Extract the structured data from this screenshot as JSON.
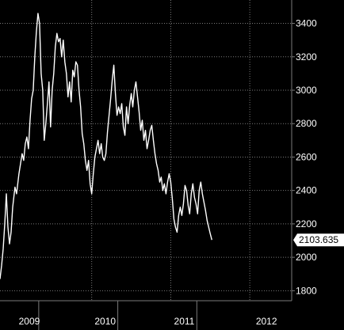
{
  "chart_data": {
    "type": "line",
    "title": "",
    "xlabel": "",
    "ylabel": "",
    "x_ticks": [
      "2009",
      "2010",
      "2011",
      "2012"
    ],
    "y_ticks": [
      1800,
      2000,
      2200,
      2400,
      2600,
      2800,
      3000,
      3200,
      3400
    ],
    "ylim": [
      1740,
      3540
    ],
    "xlim": [
      2008.84,
      2012.53
    ],
    "grid": true,
    "last_value_label": "2103.635",
    "colors": {
      "background": "#000000",
      "line": "#ffffff",
      "grid": "#7a7a7a",
      "text": "#ffffff"
    },
    "series": [
      {
        "points": [
          [
            2008.84,
            1870
          ],
          [
            2008.86,
            1950
          ],
          [
            2008.88,
            2050
          ],
          [
            2008.9,
            2200
          ],
          [
            2008.92,
            2380
          ],
          [
            2008.94,
            2180
          ],
          [
            2008.96,
            2080
          ],
          [
            2008.98,
            2150
          ],
          [
            2009.0,
            2300
          ],
          [
            2009.03,
            2420
          ],
          [
            2009.05,
            2380
          ],
          [
            2009.08,
            2500
          ],
          [
            2009.1,
            2560
          ],
          [
            2009.12,
            2620
          ],
          [
            2009.14,
            2580
          ],
          [
            2009.16,
            2680
          ],
          [
            2009.18,
            2720
          ],
          [
            2009.2,
            2650
          ],
          [
            2009.22,
            2820
          ],
          [
            2009.24,
            2950
          ],
          [
            2009.26,
            3000
          ],
          [
            2009.28,
            3200
          ],
          [
            2009.3,
            3350
          ],
          [
            2009.32,
            3460
          ],
          [
            2009.34,
            3400
          ],
          [
            2009.36,
            3100
          ],
          [
            2009.38,
            3000
          ],
          [
            2009.4,
            2700
          ],
          [
            2009.42,
            2800
          ],
          [
            2009.44,
            2920
          ],
          [
            2009.46,
            3050
          ],
          [
            2009.48,
            2780
          ],
          [
            2009.5,
            3000
          ],
          [
            2009.52,
            3100
          ],
          [
            2009.54,
            3260
          ],
          [
            2009.56,
            3340
          ],
          [
            2009.58,
            3290
          ],
          [
            2009.6,
            3310
          ],
          [
            2009.62,
            3200
          ],
          [
            2009.64,
            3300
          ],
          [
            2009.66,
            3170
          ],
          [
            2009.68,
            3100
          ],
          [
            2009.7,
            2960
          ],
          [
            2009.72,
            3050
          ],
          [
            2009.74,
            2930
          ],
          [
            2009.76,
            3120
          ],
          [
            2009.78,
            3080
          ],
          [
            2009.8,
            3170
          ],
          [
            2009.82,
            3150
          ],
          [
            2009.84,
            3000
          ],
          [
            2009.86,
            2900
          ],
          [
            2009.88,
            2740
          ],
          [
            2009.9,
            2680
          ],
          [
            2009.92,
            2580
          ],
          [
            2009.94,
            2520
          ],
          [
            2009.96,
            2580
          ],
          [
            2009.98,
            2440
          ],
          [
            2010.0,
            2380
          ],
          [
            2010.02,
            2500
          ],
          [
            2010.04,
            2600
          ],
          [
            2010.06,
            2650
          ],
          [
            2010.08,
            2700
          ],
          [
            2010.1,
            2620
          ],
          [
            2010.12,
            2680
          ],
          [
            2010.14,
            2600
          ],
          [
            2010.16,
            2580
          ],
          [
            2010.18,
            2620
          ],
          [
            2010.2,
            2750
          ],
          [
            2010.22,
            2850
          ],
          [
            2010.24,
            2950
          ],
          [
            2010.26,
            3060
          ],
          [
            2010.28,
            3150
          ],
          [
            2010.3,
            2980
          ],
          [
            2010.32,
            2850
          ],
          [
            2010.34,
            2900
          ],
          [
            2010.36,
            2860
          ],
          [
            2010.38,
            2920
          ],
          [
            2010.4,
            2780
          ],
          [
            2010.42,
            2730
          ],
          [
            2010.44,
            2900
          ],
          [
            2010.46,
            2800
          ],
          [
            2010.48,
            2910
          ],
          [
            2010.5,
            2980
          ],
          [
            2010.52,
            2900
          ],
          [
            2010.54,
            3000
          ],
          [
            2010.56,
            3050
          ],
          [
            2010.58,
            2960
          ],
          [
            2010.6,
            2870
          ],
          [
            2010.62,
            2760
          ],
          [
            2010.64,
            2820
          ],
          [
            2010.66,
            2700
          ],
          [
            2010.68,
            2760
          ],
          [
            2010.7,
            2650
          ],
          [
            2010.72,
            2700
          ],
          [
            2010.74,
            2760
          ],
          [
            2010.76,
            2790
          ],
          [
            2010.78,
            2700
          ],
          [
            2010.8,
            2620
          ],
          [
            2010.82,
            2560
          ],
          [
            2010.84,
            2520
          ],
          [
            2010.86,
            2450
          ],
          [
            2010.88,
            2480
          ],
          [
            2010.9,
            2400
          ],
          [
            2010.92,
            2440
          ],
          [
            2010.94,
            2380
          ],
          [
            2010.96,
            2450
          ],
          [
            2010.98,
            2500
          ],
          [
            2011.0,
            2450
          ],
          [
            2011.02,
            2350
          ],
          [
            2011.04,
            2230
          ],
          [
            2011.06,
            2180
          ],
          [
            2011.08,
            2150
          ],
          [
            2011.1,
            2250
          ],
          [
            2011.12,
            2300
          ],
          [
            2011.14,
            2250
          ],
          [
            2011.16,
            2320
          ],
          [
            2011.18,
            2430
          ],
          [
            2011.2,
            2400
          ],
          [
            2011.22,
            2310
          ],
          [
            2011.24,
            2260
          ],
          [
            2011.26,
            2380
          ],
          [
            2011.28,
            2440
          ],
          [
            2011.3,
            2360
          ],
          [
            2011.32,
            2320
          ],
          [
            2011.34,
            2260
          ],
          [
            2011.36,
            2400
          ],
          [
            2011.38,
            2450
          ],
          [
            2011.4,
            2380
          ],
          [
            2011.42,
            2330
          ],
          [
            2011.44,
            2280
          ],
          [
            2011.46,
            2220
          ],
          [
            2011.48,
            2180
          ],
          [
            2011.5,
            2140
          ],
          [
            2011.52,
            2103.635
          ]
        ]
      }
    ]
  }
}
